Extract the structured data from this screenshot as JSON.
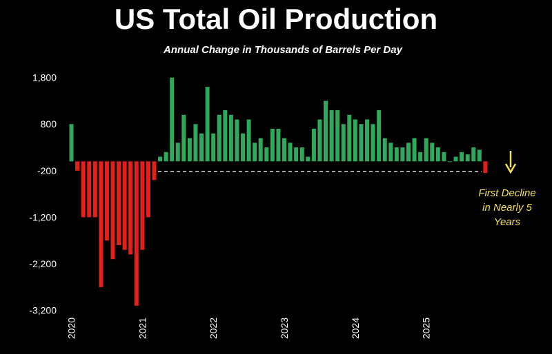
{
  "chart_data": {
    "type": "bar",
    "title": "US Total Oil Production",
    "subtitle": "Annual Change in Thousands of Barrels Per Day",
    "xlabel": "",
    "ylabel": "",
    "ylim": [
      -3400,
      2000
    ],
    "yticks": [
      1800,
      800,
      -200,
      -1200,
      -2200,
      -3200
    ],
    "ytick_labels": [
      "1,800",
      "800",
      "-200",
      "-1,200",
      "-2,200",
      "-3,200"
    ],
    "xtick_labels": [
      "2020",
      "2021",
      "2022",
      "2023",
      "2024",
      "2025"
    ],
    "grid": false,
    "start_month": "2020-01",
    "end_month": "2025-11",
    "values": [
      800,
      -200,
      -1200,
      -1200,
      -1200,
      -2700,
      -1700,
      -2100,
      -1800,
      -1900,
      -2000,
      -3100,
      -1900,
      -1200,
      -400,
      100,
      200,
      1800,
      400,
      1000,
      500,
      800,
      600,
      1600,
      600,
      1000,
      1100,
      1000,
      900,
      600,
      900,
      400,
      500,
      300,
      700,
      700,
      500,
      400,
      300,
      300,
      100,
      700,
      900,
      1300,
      1100,
      1100,
      800,
      1000,
      900,
      800,
      900,
      800,
      1100,
      500,
      400,
      300,
      300,
      400,
      500,
      200,
      500,
      400,
      300,
      200,
      0,
      100,
      200,
      150,
      300,
      250,
      -250
    ],
    "positive_color": "#2ea85a",
    "negative_color": "#e5201c",
    "reference_line": {
      "value": -220,
      "style": "dashed",
      "color": "#ffffff"
    },
    "annotation": {
      "lines": [
        "First Decline",
        "in Nearly 5",
        "Years"
      ],
      "color": "#f3e24b",
      "arrow": "down"
    }
  }
}
